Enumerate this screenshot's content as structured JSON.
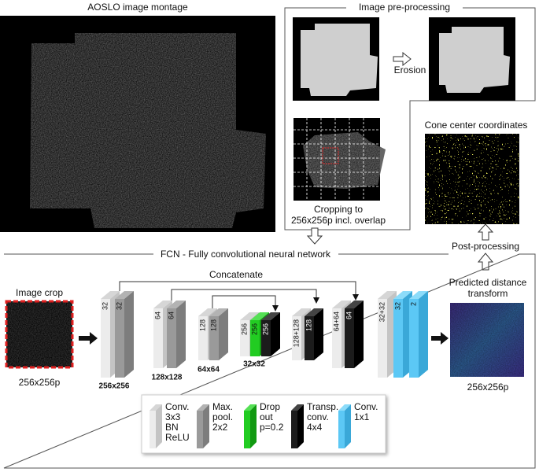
{
  "montage": {
    "title": "AOSLO image montage"
  },
  "preprocessing": {
    "title": "Image pre-processing",
    "erosion": "Erosion",
    "cropping": [
      "Cropping to",
      "256x256p incl. overlap"
    ]
  },
  "postprocessing": {
    "cone_title": "Cone center coordinates",
    "label": "Post-processing"
  },
  "fcn": {
    "title": "FCN - Fully convolutional neural network",
    "input": {
      "title": "Image crop",
      "size": "256x256p"
    },
    "concatenate": "Concatenate",
    "blocks": [
      "32",
      "32",
      "64",
      "64",
      "128",
      "128",
      "256",
      "256",
      "256",
      "128+128",
      "128",
      "64+64",
      "64",
      "32+32",
      "32",
      "2"
    ],
    "sizes": [
      "256x256",
      "128x128",
      "64x64",
      "32x32"
    ],
    "output": {
      "title": [
        "Predicted distance",
        "transform"
      ],
      "size": "256x256p"
    }
  },
  "legend": [
    {
      "lines": [
        "Conv.",
        "3x3",
        "BN",
        "ReLU"
      ]
    },
    {
      "lines": [
        "Max.",
        "pool.",
        "2x2"
      ]
    },
    {
      "lines": [
        "Drop",
        "out",
        "p=0.2"
      ]
    },
    {
      "lines": [
        "Transp.",
        "conv.",
        "4x4"
      ]
    },
    {
      "lines": [
        "Conv.",
        "1x1"
      ]
    }
  ]
}
